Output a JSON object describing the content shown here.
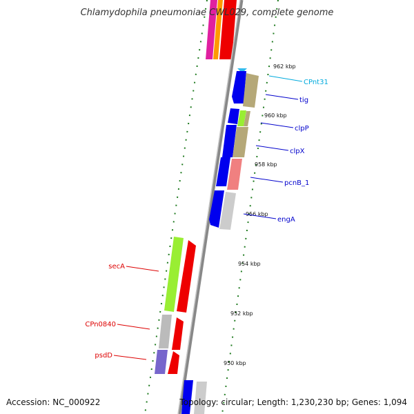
{
  "title": "Chlamydophila pneumoniae CWL029, complete genome",
  "footer": {
    "accession": "Accession: NC_000922",
    "topology": "Topology: circular; Length: 1,230,230 bp; Genes: 1,094"
  },
  "scale_ticks": [
    "962 kbp",
    "960 kbp",
    "958 kbp",
    "956 kbp",
    "954 kbp",
    "952 kbp",
    "950 kbp"
  ],
  "gene_labels": {
    "right": [
      "CPnt31",
      "tig",
      "clpP",
      "clpX",
      "pcnB_1",
      "engA"
    ],
    "left": [
      "secA",
      "CPn0840",
      "psdD"
    ]
  },
  "colors": {
    "backbone": "#8a8a8a",
    "tick_marks": "#1e7a1e",
    "forward_label": "#0000cc",
    "reverse_label": "#dd0000",
    "trna_label": "#00aadd",
    "cds_forward": "#0000ee",
    "cds_reverse": "#ee0000"
  }
}
